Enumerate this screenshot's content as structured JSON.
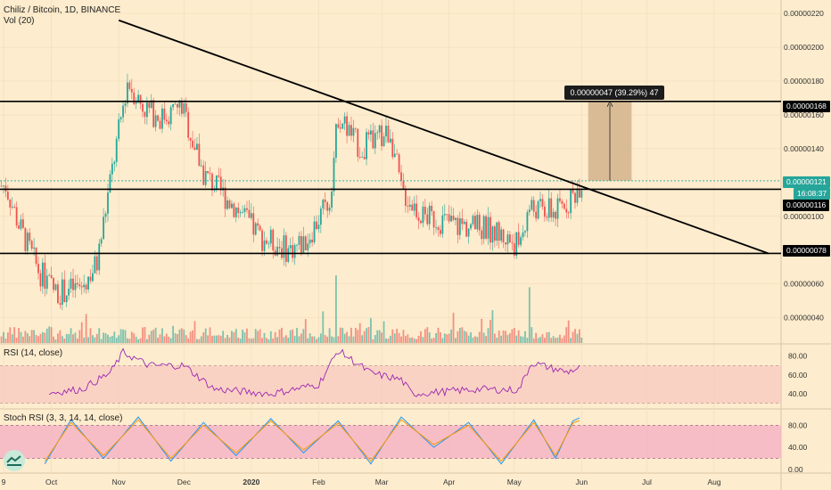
{
  "header": {
    "title": "Chiliz / Bitcoin, 1D, BINANCE",
    "volume_legend": "Vol (20)"
  },
  "price_labels": {
    "level_168": "0.00000168",
    "last": "0.00000121",
    "countdown": "16:08:37",
    "level_116": "0.00000116",
    "level_78": "0.00000078"
  },
  "measure_box": {
    "label": "0.00000047 (39.29%) 47"
  },
  "rsi_panel": {
    "legend": "RSI (14, close)"
  },
  "stoch_panel": {
    "legend": "Stoch RSI (3, 3, 14, 14, close)"
  },
  "colors": {
    "background": "#fdeccd",
    "up": "#26a69a",
    "down": "#ef5350",
    "rsi_line": "#9c27b0",
    "stoch_k": "#2196f3",
    "stoch_d": "#ff9800",
    "band": "#f8c8c0",
    "stoch_band": "#f3a9c3",
    "trend_line": "#000000",
    "target_box": "#d2b48c"
  },
  "chart_data": [
    {
      "type": "candlestick",
      "title": "Chiliz / Bitcoin, 1D, BINANCE",
      "x_ticks": [
        "9",
        "Oct",
        "Nov",
        "Dec",
        "2020",
        "Feb",
        "Mar",
        "Apr",
        "May",
        "Jun",
        "Jul",
        "Aug"
      ],
      "y_ticks": [
        "0.00000220",
        "0.00000200",
        "0.00000180",
        "0.00000160",
        "0.00000140",
        "0.00000100",
        "0.00000060",
        "0.00000040"
      ],
      "ylim": [
        2.5e-07,
        2.28e-06
      ],
      "grid": true,
      "horizontal_levels": [
        1.68e-06,
        1.16e-06,
        7.8e-07
      ],
      "last_price": 1.21e-06,
      "trendline": {
        "from": [
          "2019-11-01",
          2.16e-06
        ],
        "to": [
          "2020-08-26",
          7.8e-07
        ]
      },
      "target_range": {
        "from": 1.21e-06,
        "to": 1.68e-06,
        "change": "0.00000047 (39.29%) 47"
      },
      "anchors": [
        [
          "2019-09-10",
          1.18e-06
        ],
        [
          "2019-09-16",
          9.5e-07
        ],
        [
          "2019-09-25",
          6.8e-07
        ],
        [
          "2019-10-03",
          5.5e-07
        ],
        [
          "2019-10-15",
          5.8e-07
        ],
        [
          "2019-10-22",
          7.2e-07
        ],
        [
          "2019-10-28",
          1.2e-06
        ],
        [
          "2019-11-05",
          1.8e-06
        ],
        [
          "2019-11-12",
          1.65e-06
        ],
        [
          "2019-11-20",
          1.58e-06
        ],
        [
          "2019-11-30",
          1.65e-06
        ],
        [
          "2019-12-10",
          1.25e-06
        ],
        [
          "2019-12-25",
          1.05e-06
        ],
        [
          "2020-01-05",
          8.8e-07
        ],
        [
          "2020-01-18",
          8e-07
        ],
        [
          "2020-01-26",
          8.5e-07
        ],
        [
          "2020-02-06",
          1.1e-06
        ],
        [
          "2020-02-10",
          1.6e-06
        ],
        [
          "2020-02-20",
          1.4e-06
        ],
        [
          "2020-03-05",
          1.5e-06
        ],
        [
          "2020-03-10",
          1.15e-06
        ],
        [
          "2020-03-20",
          1e-06
        ],
        [
          "2020-04-05",
          9.5e-07
        ],
        [
          "2020-04-20",
          9.2e-07
        ],
        [
          "2020-05-03",
          8.3e-07
        ],
        [
          "2020-05-08",
          1.05e-06
        ],
        [
          "2020-05-20",
          1.02e-06
        ],
        [
          "2020-05-28",
          1.12e-06
        ],
        [
          "2020-06-01",
          1.21e-06
        ]
      ],
      "volume_spikes": [
        [
          "2020-02-09",
          6.5e-07
        ],
        [
          "2020-05-08",
          5.8e-07
        ],
        [
          "2019-11-03",
          3.3e-07
        ]
      ]
    },
    {
      "type": "line",
      "title": "RSI (14, close)",
      "y_ticks": [
        "80.00",
        "60.00",
        "40.00"
      ],
      "ylim": [
        25,
        92
      ],
      "band": [
        30,
        70
      ],
      "anchors": [
        [
          "2019-09-30",
          41
        ],
        [
          "2019-10-15",
          45
        ],
        [
          "2019-10-28",
          62
        ],
        [
          "2019-11-03",
          84
        ],
        [
          "2019-11-15",
          70
        ],
        [
          "2019-12-01",
          70
        ],
        [
          "2019-12-15",
          45
        ],
        [
          "2020-01-10",
          40
        ],
        [
          "2020-02-01",
          50
        ],
        [
          "2020-02-10",
          86
        ],
        [
          "2020-02-25",
          62
        ],
        [
          "2020-03-10",
          55
        ],
        [
          "2020-03-15",
          40
        ],
        [
          "2020-04-15",
          45
        ],
        [
          "2020-05-03",
          44
        ],
        [
          "2020-05-09",
          73
        ],
        [
          "2020-05-25",
          63
        ],
        [
          "2020-06-01",
          68
        ]
      ]
    },
    {
      "type": "line",
      "title": "Stoch RSI (3, 3, 14, 14, close)",
      "y_ticks": [
        "80.00",
        "40.00",
        "0.00"
      ],
      "ylim": [
        -5,
        108
      ],
      "band": [
        20,
        80
      ],
      "series": [
        {
          "values": [
            10,
            90,
            20,
            95,
            15,
            85,
            25,
            92,
            30,
            88,
            10,
            95,
            40,
            85,
            10,
            90,
            20,
            88,
            95
          ]
        },
        {
          "values": [
            15,
            85,
            25,
            90,
            20,
            80,
            30,
            88,
            35,
            84,
            15,
            90,
            45,
            80,
            15,
            85,
            25,
            84,
            90
          ]
        }
      ],
      "x_dates": [
        "2019-09-28",
        "2019-10-10",
        "2019-10-25",
        "2019-11-10",
        "2019-11-25",
        "2019-12-10",
        "2019-12-25",
        "2020-01-10",
        "2020-01-25",
        "2020-02-10",
        "2020-02-25",
        "2020-03-10",
        "2020-03-25",
        "2020-04-10",
        "2020-04-25",
        "2020-05-10",
        "2020-05-20",
        "2020-05-28",
        "2020-06-01"
      ]
    }
  ]
}
